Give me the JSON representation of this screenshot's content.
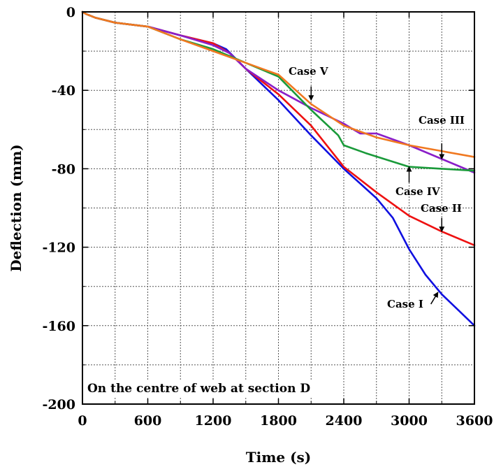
{
  "chart_data": {
    "type": "line",
    "title": "",
    "xlabel": "Time (s)",
    "ylabel": "Deflection (mm)",
    "xlim": [
      0,
      3600
    ],
    "ylim": [
      -200,
      0
    ],
    "xticks": [
      0,
      600,
      1200,
      1800,
      2400,
      3000,
      3600
    ],
    "yticks": [
      0,
      -40,
      -80,
      -120,
      -160,
      -200
    ],
    "grid": true,
    "inset_label": "On the centre of web at section D",
    "series": [
      {
        "name": "Case I",
        "color": "#1010e0",
        "x": [
          0,
          30,
          120,
          300,
          600,
          900,
          1200,
          1320,
          1500,
          1800,
          2100,
          2400,
          2700,
          2850,
          3000,
          3150,
          3300,
          3450,
          3600
        ],
        "y": [
          0,
          -1,
          -3,
          -5.5,
          -7.5,
          -12,
          -16,
          -19,
          -29,
          -45,
          -63,
          -80,
          -95,
          -105,
          -121,
          -134,
          -144,
          -152,
          -160
        ]
      },
      {
        "name": "Case II",
        "color": "#ee1111",
        "x": [
          0,
          30,
          120,
          300,
          600,
          900,
          1200,
          1350,
          1500,
          1800,
          2100,
          2400,
          2700,
          3000,
          3300,
          3600
        ],
        "y": [
          0,
          -1,
          -3,
          -5.5,
          -7.5,
          -12,
          -16,
          -21,
          -29,
          -42,
          -58,
          -79,
          -92,
          -104,
          -112,
          -119
        ]
      },
      {
        "name": "Case III",
        "color": "#8a1ec8",
        "x": [
          0,
          30,
          120,
          300,
          600,
          900,
          1200,
          1350,
          1500,
          1800,
          2100,
          2400,
          2550,
          2700,
          3000,
          3300,
          3600
        ],
        "y": [
          0,
          -1,
          -3,
          -5.5,
          -7.5,
          -12,
          -17,
          -21,
          -29,
          -40,
          -49,
          -57,
          -62,
          -62,
          -68,
          -75,
          -82
        ]
      },
      {
        "name": "Case IV",
        "color": "#1a9a3a",
        "x": [
          0,
          30,
          120,
          300,
          600,
          900,
          1200,
          1500,
          1800,
          2100,
          2350,
          2400,
          2600,
          3000,
          3300,
          3600
        ],
        "y": [
          0,
          -1,
          -3,
          -5.5,
          -7.5,
          -14,
          -19,
          -26,
          -33,
          -50,
          -63,
          -68,
          -72,
          -79,
          -80,
          -81
        ]
      },
      {
        "name": "Case V",
        "color": "#f07820",
        "x": [
          0,
          30,
          120,
          300,
          600,
          900,
          1200,
          1500,
          1800,
          2100,
          2400,
          2700,
          3000,
          3300,
          3600
        ],
        "y": [
          0,
          -1,
          -3,
          -5.5,
          -7.5,
          -14,
          -20,
          -26,
          -32,
          -47,
          -58,
          -64,
          -68,
          -71,
          -74
        ]
      }
    ],
    "annotations": [
      {
        "text": "Case V",
        "arrow_from": [
          2100,
          -38
        ],
        "arrow_to": [
          2100,
          -45
        ]
      },
      {
        "text": "Case III",
        "arrow_from": [
          3300,
          -67
        ],
        "arrow_to": [
          3300,
          -75
        ]
      },
      {
        "text": "Case IV",
        "arrow_from": [
          3000,
          -87
        ],
        "arrow_to": [
          3000,
          -79
        ]
      },
      {
        "text": "Case II",
        "arrow_from": [
          3300,
          -105
        ],
        "arrow_to": [
          3300,
          -112
        ]
      },
      {
        "text": "Case I",
        "arrow_from": [
          3200,
          -149
        ],
        "arrow_to": [
          3265,
          -143
        ]
      }
    ]
  }
}
